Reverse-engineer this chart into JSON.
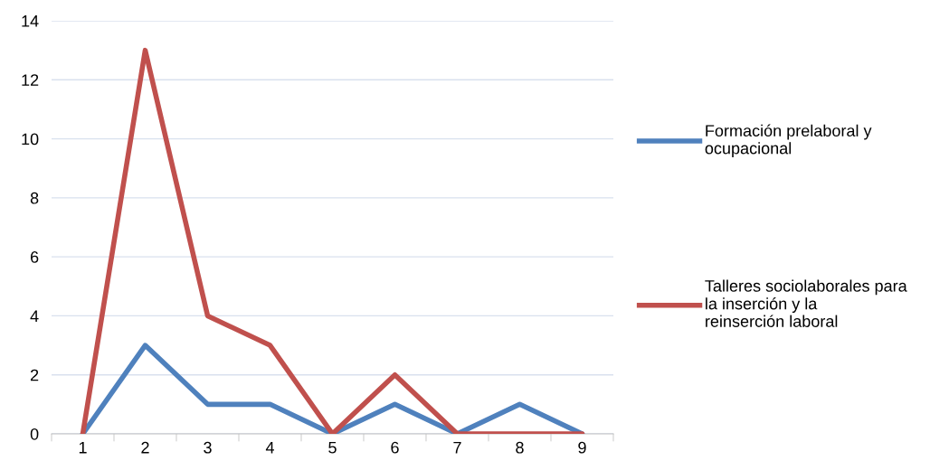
{
  "chart_data": {
    "type": "line",
    "categories": [
      "1",
      "2",
      "3",
      "4",
      "5",
      "6",
      "7",
      "8",
      "9"
    ],
    "series": [
      {
        "name": "Formación prelaboral y ocupacional",
        "color": "#4f81bd",
        "values": [
          0,
          3,
          1,
          1,
          0,
          1,
          0,
          1,
          0
        ]
      },
      {
        "name": "Talleres sociolaborales para la inserción y la reinserción laboral",
        "color": "#c0504d",
        "values": [
          0,
          13,
          4,
          3,
          0,
          2,
          0,
          0,
          0
        ]
      }
    ],
    "ylim": [
      0,
      14
    ],
    "yticks": [
      0,
      2,
      4,
      6,
      8,
      10,
      12,
      14
    ],
    "grid": "y",
    "legend": "right",
    "marker": "none",
    "line_style": "solid"
  }
}
